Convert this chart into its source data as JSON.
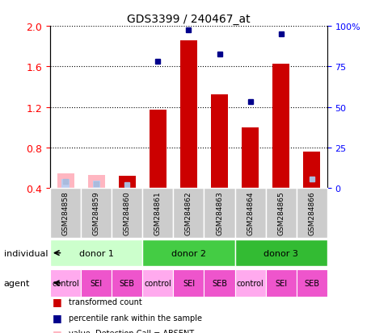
{
  "title": "GDS3399 / 240467_at",
  "samples": [
    "GSM284858",
    "GSM284859",
    "GSM284860",
    "GSM284861",
    "GSM284862",
    "GSM284863",
    "GSM284864",
    "GSM284865",
    "GSM284866"
  ],
  "transformed_count": [
    null,
    null,
    0.52,
    1.17,
    1.86,
    1.32,
    1.0,
    1.63,
    0.76
  ],
  "percentile_rank": [
    null,
    null,
    null,
    1.65,
    1.96,
    1.72,
    1.25,
    1.92,
    null
  ],
  "percentile_rank_absent": [
    0.46,
    0.44,
    0.43,
    null,
    null,
    null,
    null,
    null,
    0.49
  ],
  "absent_value_bar": [
    0.54,
    0.53,
    null,
    null,
    null,
    null,
    null,
    null,
    null
  ],
  "absent_rank_bar": [
    0.49,
    0.47,
    null,
    null,
    null,
    null,
    null,
    null,
    null
  ],
  "gsm284860_red_bar": 0.52,
  "gsm284860_blue_dot": 0.43,
  "gsm284866_red_bar": 0.76,
  "gsm284866_blue_dot": 0.49,
  "ylim_left": [
    0.4,
    2.0
  ],
  "ylim_right": [
    0,
    100
  ],
  "yticks_left": [
    0.4,
    0.8,
    1.2,
    1.6,
    2.0
  ],
  "yticks_right": [
    0,
    25,
    50,
    75,
    100
  ],
  "bar_color_present": "#CC0000",
  "bar_color_absent_value": "#FFB6C1",
  "bar_color_absent_rank": "#BBCCEE",
  "dot_color_present": "#00008B",
  "dot_color_absent": "#AABBDD",
  "donor1_color": "#CCFFCC",
  "donor2_color": "#44CC44",
  "donor3_color": "#33BB33",
  "agent_color_control": "#FFAAEE",
  "agent_color_sei_seb": "#EE55CC",
  "donors": [
    {
      "label": "donor 1",
      "start": 0,
      "end": 2,
      "color": "#CCFFCC"
    },
    {
      "label": "donor 2",
      "start": 3,
      "end": 5,
      "color": "#44CC44"
    },
    {
      "label": "donor 3",
      "start": 6,
      "end": 8,
      "color": "#33BB33"
    }
  ],
  "agents": [
    "control",
    "SEI",
    "SEB",
    "control",
    "SEI",
    "SEB",
    "control",
    "SEI",
    "SEB"
  ]
}
